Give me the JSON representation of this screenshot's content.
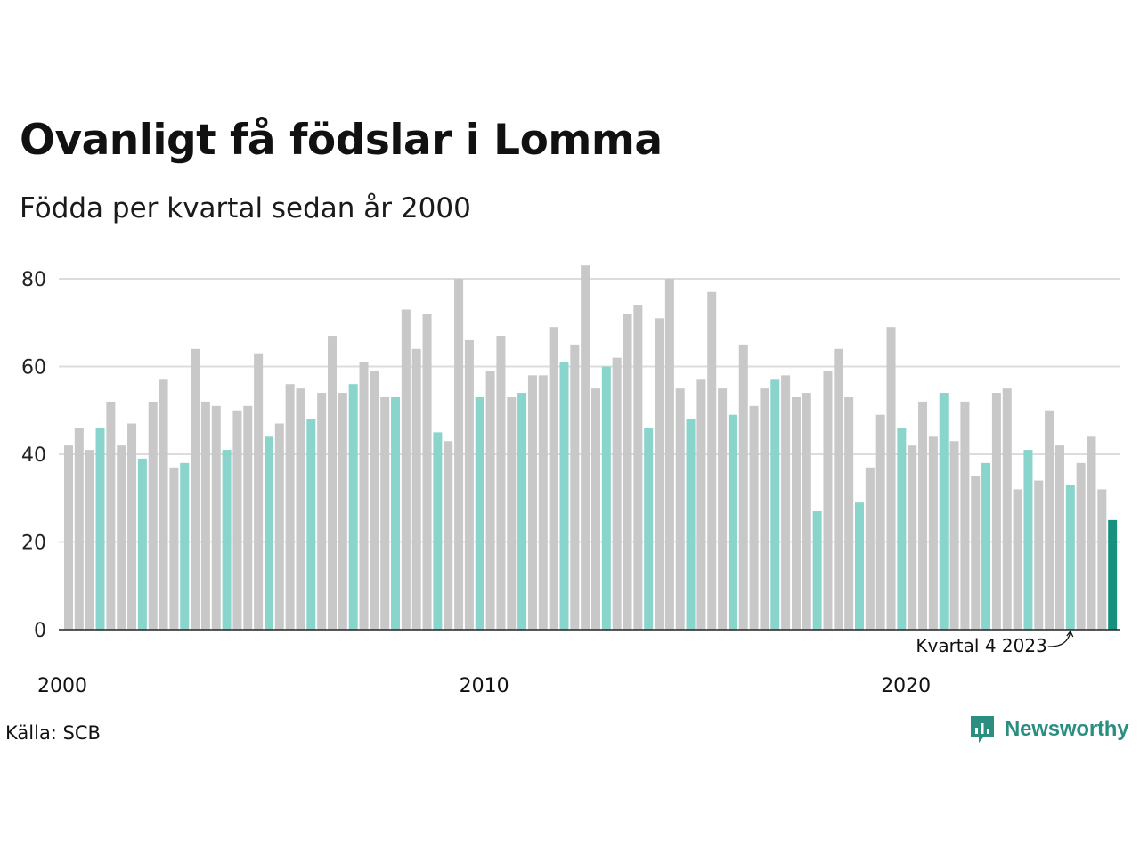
{
  "header": {
    "title": "Ovanligt få födslar i Lomma",
    "subtitle": "Födda per kvartal sedan år 2000"
  },
  "footer": {
    "source": "Källa: SCB",
    "brand": "Newsworthy"
  },
  "colors": {
    "bar_default": "#c8c8c8",
    "bar_quarter4": "#89d4cb",
    "bar_latest": "#17917f",
    "gridline": "#dcdcdc",
    "baseline": "#222222",
    "brand": "#2a8f80"
  },
  "icons": {
    "brand_logo": "newsworthy-logo-icon",
    "annotation_arrow": "curved-arrow-icon"
  },
  "chart_data": {
    "type": "bar",
    "title": "Ovanligt få födslar i Lomma",
    "subtitle": "Födda per kvartal sedan år 2000",
    "xlabel": "",
    "ylabel": "",
    "ylim": [
      0,
      85
    ],
    "yticks": [
      0,
      20,
      40,
      60,
      80
    ],
    "xticks": [
      {
        "label": "2000",
        "year": 2000
      },
      {
        "label": "2010",
        "year": 2010
      },
      {
        "label": "2020",
        "year": 2020
      }
    ],
    "grid": true,
    "start_year": 2000,
    "highlight_quarter": 4,
    "annotation": {
      "label": "Kvartal 4 2023",
      "year": 2023,
      "quarter": 4
    },
    "values": [
      42,
      46,
      41,
      46,
      52,
      42,
      47,
      39,
      52,
      57,
      37,
      38,
      64,
      52,
      51,
      41,
      50,
      51,
      63,
      44,
      47,
      56,
      55,
      48,
      54,
      67,
      54,
      56,
      61,
      59,
      53,
      53,
      73,
      64,
      72,
      45,
      43,
      80,
      66,
      53,
      59,
      67,
      53,
      54,
      58,
      58,
      69,
      61,
      65,
      83,
      55,
      60,
      62,
      72,
      74,
      46,
      71,
      80,
      55,
      48,
      57,
      77,
      55,
      49,
      65,
      51,
      55,
      57,
      58,
      53,
      54,
      27,
      59,
      64,
      53,
      29,
      37,
      49,
      69,
      46,
      42,
      52,
      44,
      54,
      43,
      52,
      35,
      38,
      54,
      55,
      32,
      41,
      34,
      50,
      42,
      33,
      38,
      44,
      32,
      25
    ]
  }
}
